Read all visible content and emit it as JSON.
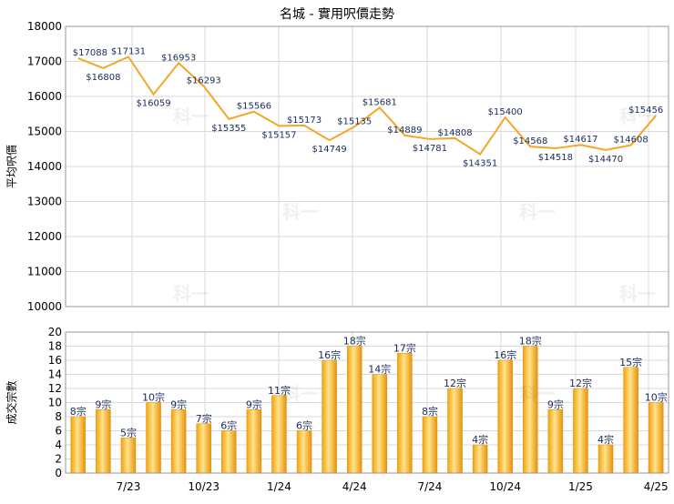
{
  "chart_data": [
    {
      "type": "line",
      "title": "名城 - 實用呎價走勢",
      "ylabel": "平均呎價",
      "ylim": [
        10000,
        18000
      ],
      "yticks": [
        10000,
        11000,
        12000,
        13000,
        14000,
        15000,
        16000,
        17000,
        18000
      ],
      "x_tick_labels": [
        "7/23",
        "10/23",
        "1/24",
        "4/24",
        "7/24",
        "10/24",
        "1/25",
        "4/25"
      ],
      "grid": true,
      "line_color": "#f5a623",
      "series": [
        {
          "values": [
            17088,
            16808,
            17131,
            16059,
            16953,
            16293,
            15355,
            15566,
            15157,
            15173,
            14749,
            15135,
            15681,
            14889,
            14781,
            14808,
            14351,
            15400,
            14568,
            14518,
            14617,
            14470,
            14608,
            15456
          ],
          "labels": [
            "$17088",
            "$16808",
            "$17131",
            "$16059",
            "$16953",
            "$16293",
            "$15355",
            "$15566",
            "$15157",
            "$15173",
            "$14749",
            "$15135",
            "$15681",
            "$14889",
            "$14781",
            "$14808",
            "$14351",
            "$15400",
            "$14568",
            "$14518",
            "$14617",
            "$14470",
            "$14608",
            "$15456"
          ]
        }
      ]
    },
    {
      "type": "bar",
      "ylabel": "成交宗數",
      "ylim": [
        0,
        20
      ],
      "yticks": [
        0,
        2,
        4,
        6,
        8,
        10,
        12,
        14,
        16,
        18,
        20
      ],
      "x_tick_labels": [
        "7/23",
        "10/23",
        "1/24",
        "4/24",
        "7/24",
        "10/24",
        "1/25",
        "4/25"
      ],
      "grid": true,
      "bar_color": "#f5a623",
      "series": [
        {
          "values": [
            8,
            9,
            5,
            10,
            9,
            7,
            6,
            9,
            11,
            6,
            16,
            18,
            14,
            17,
            8,
            12,
            4,
            16,
            18,
            9,
            12,
            4,
            15,
            10
          ],
          "labels": [
            "8宗",
            "9宗",
            "5宗",
            "10宗",
            "9宗",
            "7宗",
            "6宗",
            "9宗",
            "11宗",
            "6宗",
            "16宗",
            "18宗",
            "14宗",
            "17宗",
            "8宗",
            "12宗",
            "4宗",
            "16宗",
            "18宗",
            "9宗",
            "12宗",
            "4宗",
            "15宗",
            "10宗"
          ]
        }
      ]
    }
  ],
  "watermark": "科一"
}
